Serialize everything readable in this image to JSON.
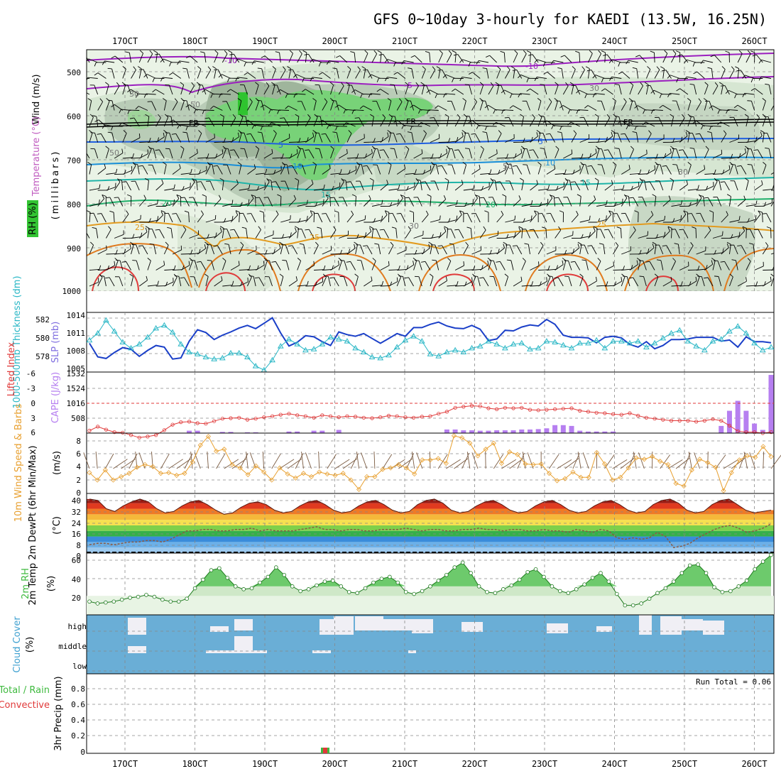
{
  "title": "GFS 0~10day 3-hourly for KAEDI (13.5W, 16.25N)",
  "x_labels": [
    "17OCT",
    "18OCT",
    "19OCT",
    "20OCT",
    "21OCT",
    "22OCT",
    "23OCT",
    "24OCT",
    "25OCT",
    "26OCT"
  ],
  "run_total": "Run Total = 0.06",
  "panels": {
    "upper": {
      "y_ticks": [
        "500",
        "600",
        "700",
        "800",
        "900",
        "1000"
      ],
      "ylabel_wind": "Wind (m/s)",
      "ylabel_temp": "Temperature (°C)",
      "ylabel_rh": "RH (%)",
      "ylabel_mb": "(millibars)",
      "freezing_label": "FR",
      "temp_labels": [
        "-10",
        "-5",
        "5",
        "10",
        "15",
        "20",
        "25"
      ],
      "rh_labels": [
        "30",
        "50"
      ]
    },
    "thickness_slp": {
      "left_ticks": [
        "582",
        "580",
        "578"
      ],
      "right_ticks": [
        "1014",
        "1011",
        "1008",
        "1005"
      ],
      "ylabel_left": "1000-500mb Thickness (dm)",
      "ylabel_right": "SLP (mb)"
    },
    "li_cape": {
      "left_ticks": [
        "-6",
        "-3",
        "0",
        "3",
        "6"
      ],
      "right_ticks": [
        "1532",
        "1524",
        "1016",
        "508"
      ],
      "ylabel_left": "Lifted Index",
      "ylabel_right": "CAPE (J/kg)"
    },
    "wind10": {
      "ticks": [
        "8",
        "6",
        "4",
        "2",
        "0"
      ],
      "ylabel": "10m Wind Speed & Barbs",
      "ylabel_unit": "(m/s)"
    },
    "temp2m": {
      "ticks": [
        "40",
        "32",
        "24",
        "16",
        "8",
        "0"
      ],
      "ylabel": "2m Temp 2m DewPt (6hr Min/Max)",
      "ylabel_unit": "(°C)"
    },
    "rh2m": {
      "ticks": [
        "60",
        "40",
        "20"
      ],
      "ylabel": "2m RH",
      "ylabel_unit": "(%)"
    },
    "cloud": {
      "levels": [
        "high",
        "middle",
        "low"
      ],
      "ylabel": "Cloud Cover",
      "ylabel_unit": "(%)"
    },
    "precip": {
      "ticks": [
        "0.8",
        "0.6",
        "0.4",
        "0.2",
        "0"
      ],
      "ylabel": "3hr Precip (mm)",
      "legend_total": "Total / Rain",
      "legend_conv": "Convective"
    }
  },
  "colors": {
    "thickness": "#2ab7c6",
    "slp": "#1a3fc8",
    "lifted_index": "#e03a3a",
    "cape": "#b67ff0",
    "wind": "#e8a030",
    "rh": "#3fba3f",
    "cloud_bg": "#6aaed6",
    "cloud_fill": "#f0eff5",
    "dewpt": "#8a5a44"
  },
  "chart_data": [
    {
      "type": "line",
      "name": "thickness-slp",
      "x_unit": "3-hourly steps from 16OCT 12Z",
      "series": [
        {
          "name": "1000-500mb Thickness",
          "values": [
            580.2,
            580.9,
            582.2,
            581.1,
            580.0,
            579.4,
            579.8,
            580.5,
            581.4,
            581.7,
            581.0,
            579.8,
            579.0,
            578.8,
            578.5,
            578.3,
            578.4,
            578.9,
            578.9,
            578.5,
            577.6,
            577.2,
            578.2,
            579.6,
            580.3,
            579.8,
            579.2,
            579.3,
            579.8,
            580.5,
            580.3,
            580.1,
            579.4,
            579.0,
            578.5,
            578.4,
            578.7,
            579.5,
            580.2,
            580.6,
            580.1,
            578.8,
            578.6,
            579.0,
            579.2,
            579.0,
            579.4,
            579.6,
            580.1,
            579.8,
            579.4,
            579.8,
            579.9,
            579.3,
            579.4,
            580.1,
            580.0,
            579.7,
            579.4,
            579.9,
            579.9,
            580.2,
            579.4,
            580.1,
            580.1,
            579.9,
            580.1,
            579.5,
            579.9,
            580.4,
            580.9,
            581.2,
            580.1,
            579.6,
            579.2,
            580.1,
            580.3,
            581.1,
            581.6,
            580.9,
            579.9,
            579.2,
            579.5
          ]
        },
        {
          "name": "SLP",
          "values": [
            1009.3,
            1006.8,
            1006.5,
            1007.6,
            1008.5,
            1008.2,
            1006.9,
            1008.0,
            1008.9,
            1008.6,
            1006.4,
            1006.6,
            1009.7,
            1011.8,
            1011.3,
            1010.0,
            1010.8,
            1011.4,
            1012.1,
            1012.6,
            1012.0,
            1013.0,
            1014.0,
            1011.2,
            1008.8,
            1009.5,
            1010.7,
            1010.5,
            1009.6,
            1008.9,
            1011.4,
            1010.9,
            1010.6,
            1011.1,
            1010.2,
            1009.3,
            1010.2,
            1011.1,
            1010.6,
            1012.2,
            1012.2,
            1012.8,
            1013.2,
            1012.5,
            1012.1,
            1012.0,
            1012.6,
            1011.9,
            1009.8,
            1010.1,
            1011.7,
            1011.6,
            1012.3,
            1012.7,
            1012.5,
            1013.7,
            1012.8,
            1010.8,
            1010.4,
            1010.4,
            1010.3,
            1009.4,
            1010.4,
            1010.6,
            1010.3,
            1009.1,
            1008.6,
            1009.6,
            1008.3,
            1008.9,
            1010.0,
            1010.0,
            1010.1,
            1010.4,
            1010.4,
            1010.4,
            1009.7,
            1009.9,
            1008.6,
            1010.5,
            1009.6,
            1009.6,
            1009.4
          ]
        }
      ],
      "ylim_left": [
        577,
        583
      ],
      "ylim_right": [
        1004,
        1015
      ]
    },
    {
      "type": "line",
      "name": "lifted-index-cape",
      "series": [
        {
          "name": "Lifted Index",
          "values": [
            5.5,
            4.7,
            5.3,
            5.8,
            5.9,
            6.4,
            6.9,
            6.7,
            6.4,
            5.4,
            4.3,
            3.8,
            3.7,
            4.0,
            4.1,
            3.6,
            3.1,
            3.0,
            2.9,
            3.3,
            3.1,
            2.8,
            2.6,
            2.3,
            2.1,
            2.4,
            2.6,
            2.9,
            2.4,
            2.6,
            2.8,
            2.6,
            2.7,
            2.9,
            3.0,
            2.8,
            2.5,
            2.6,
            2.8,
            2.9,
            2.7,
            2.6,
            2.1,
            1.7,
            0.9,
            0.7,
            0.5,
            0.6,
            1.0,
            1.2,
            0.9,
            1.0,
            0.9,
            1.3,
            1.4,
            1.3,
            1.2,
            1.1,
            1.0,
            1.5,
            1.7,
            1.9,
            2.0,
            2.2,
            2.3,
            2.0,
            2.5,
            2.9,
            3.1,
            3.3,
            3.5,
            3.5,
            3.5,
            3.7,
            3.5,
            3.2,
            3.5,
            4.5,
            5.6,
            5.8,
            5.8,
            6.0,
            5.8
          ]
        },
        {
          "name": "CAPE",
          "values": [
            0,
            0,
            0,
            0,
            0,
            0,
            0,
            0,
            0,
            0,
            0,
            0,
            60,
            60,
            0,
            0,
            30,
            30,
            0,
            20,
            20,
            0,
            0,
            0,
            40,
            40,
            0,
            60,
            60,
            0,
            80,
            0,
            0,
            0,
            0,
            0,
            0,
            0,
            0,
            0,
            0,
            0,
            0,
            90,
            90,
            70,
            70,
            60,
            60,
            70,
            70,
            70,
            90,
            90,
            100,
            120,
            200,
            200,
            180,
            60,
            40,
            40,
            40,
            40,
            0,
            0,
            0,
            0,
            0,
            0,
            0,
            0,
            0,
            0,
            0,
            0,
            180,
            560,
            810,
            560,
            240,
            80,
            1460
          ]
        }
      ],
      "ylim_left": [
        -6,
        6
      ],
      "ylim_right": [
        0,
        1532
      ]
    },
    {
      "type": "line",
      "name": "10m-wind-speed",
      "series": [
        {
          "name": "10m Wind Speed",
          "values": [
            3.1,
            2.0,
            3.5,
            2.0,
            2.5,
            3.0,
            3.9,
            4.3,
            4.0,
            3.0,
            3.1,
            2.7,
            3.0,
            4.7,
            7.2,
            8.5,
            6.3,
            6.6,
            4.3,
            3.8,
            2.8,
            4.1,
            3.2,
            2.0,
            3.8,
            2.9,
            2.3,
            3.0,
            2.5,
            3.2,
            2.9,
            2.7,
            3.0,
            2.0,
            0.6,
            2.5,
            2.5,
            3.6,
            3.8,
            4.3,
            3.8,
            2.9,
            5.0,
            5.0,
            5.2,
            4.5,
            8.6,
            8.3,
            7.5,
            5.6,
            6.6,
            7.5,
            4.5,
            6.2,
            5.8,
            4.4,
            4.3,
            4.4,
            3.0,
            1.9,
            2.2,
            3.2,
            2.4,
            2.4,
            6.1,
            4.4,
            2.0,
            2.4,
            3.8,
            5.3,
            5.1,
            5.5,
            4.8,
            4.3,
            1.5,
            1.1,
            3.5,
            5.1,
            4.6,
            3.9,
            0.4,
            3.1,
            5.0,
            5.6,
            5.4,
            7.0,
            5.5
          ]
        }
      ],
      "ylim": [
        0,
        9
      ]
    },
    {
      "type": "area",
      "name": "2m-temperature",
      "series": [
        {
          "name": "2m Temp",
          "values": [
            39,
            38,
            32,
            30,
            34,
            37,
            39,
            37,
            32,
            29,
            30,
            34,
            37,
            38,
            35,
            31,
            28,
            29,
            33,
            36,
            37,
            35,
            31,
            29,
            30,
            34,
            37,
            38,
            35,
            31,
            29,
            30,
            34,
            37,
            38,
            35,
            31,
            29,
            30,
            35,
            38,
            39,
            36,
            31,
            29,
            30,
            34,
            37,
            38,
            35,
            31,
            29,
            30,
            34,
            37,
            38,
            35,
            31,
            29,
            30,
            34,
            37,
            38,
            35,
            31,
            29,
            30,
            35,
            38,
            39,
            36,
            31,
            29,
            30,
            35,
            38,
            39,
            35,
            31,
            29,
            30,
            31
          ]
        },
        {
          "name": "2m DewPt",
          "values": [
            6,
            7,
            7,
            6,
            7,
            8,
            8,
            9,
            9,
            8,
            10,
            13,
            16,
            16,
            17,
            17,
            16,
            16,
            17,
            17,
            18,
            16,
            17,
            16,
            16,
            16,
            17,
            18,
            19,
            17,
            17,
            16,
            17,
            17,
            16,
            16,
            17,
            17,
            17,
            18,
            17,
            16,
            17,
            17,
            16,
            16,
            17,
            17,
            18,
            17,
            17,
            16,
            17,
            17,
            16,
            16,
            17,
            16,
            16,
            15,
            17,
            16,
            15,
            17,
            16,
            11,
            10,
            11,
            10,
            11,
            15,
            12,
            4,
            5,
            7,
            11,
            14,
            17,
            19,
            20,
            18,
            15,
            16,
            18,
            21
          ]
        }
      ],
      "ylim": [
        0,
        42
      ]
    },
    {
      "type": "area",
      "name": "2m-rh",
      "series": [
        {
          "name": "2m RH",
          "values": [
            14,
            12,
            13,
            14,
            16,
            18,
            19,
            21,
            19,
            16,
            14,
            14,
            17,
            28,
            37,
            47,
            49,
            39,
            30,
            27,
            28,
            34,
            40,
            50,
            42,
            30,
            25,
            27,
            31,
            35,
            36,
            30,
            24,
            23,
            28,
            34,
            38,
            40,
            34,
            24,
            22,
            25,
            30,
            36,
            42,
            50,
            55,
            44,
            30,
            24,
            23,
            27,
            31,
            37,
            45,
            48,
            40,
            30,
            25,
            23,
            27,
            32,
            39,
            44,
            35,
            22,
            10,
            10,
            12,
            17,
            23,
            28,
            35,
            44,
            52,
            53,
            44,
            29,
            24,
            25,
            30,
            36,
            48,
            56,
            63
          ]
        }
      ],
      "ylim": [
        0,
        65
      ]
    },
    {
      "type": "bar",
      "name": "3hr-precip",
      "series": [
        {
          "name": "Total / Rain",
          "values": [
            0.02
          ]
        },
        {
          "name": "Convective",
          "values": [
            0.02
          ]
        }
      ],
      "categories": [
        "19OCT 21Z"
      ],
      "ylim": [
        0,
        1
      ]
    }
  ]
}
